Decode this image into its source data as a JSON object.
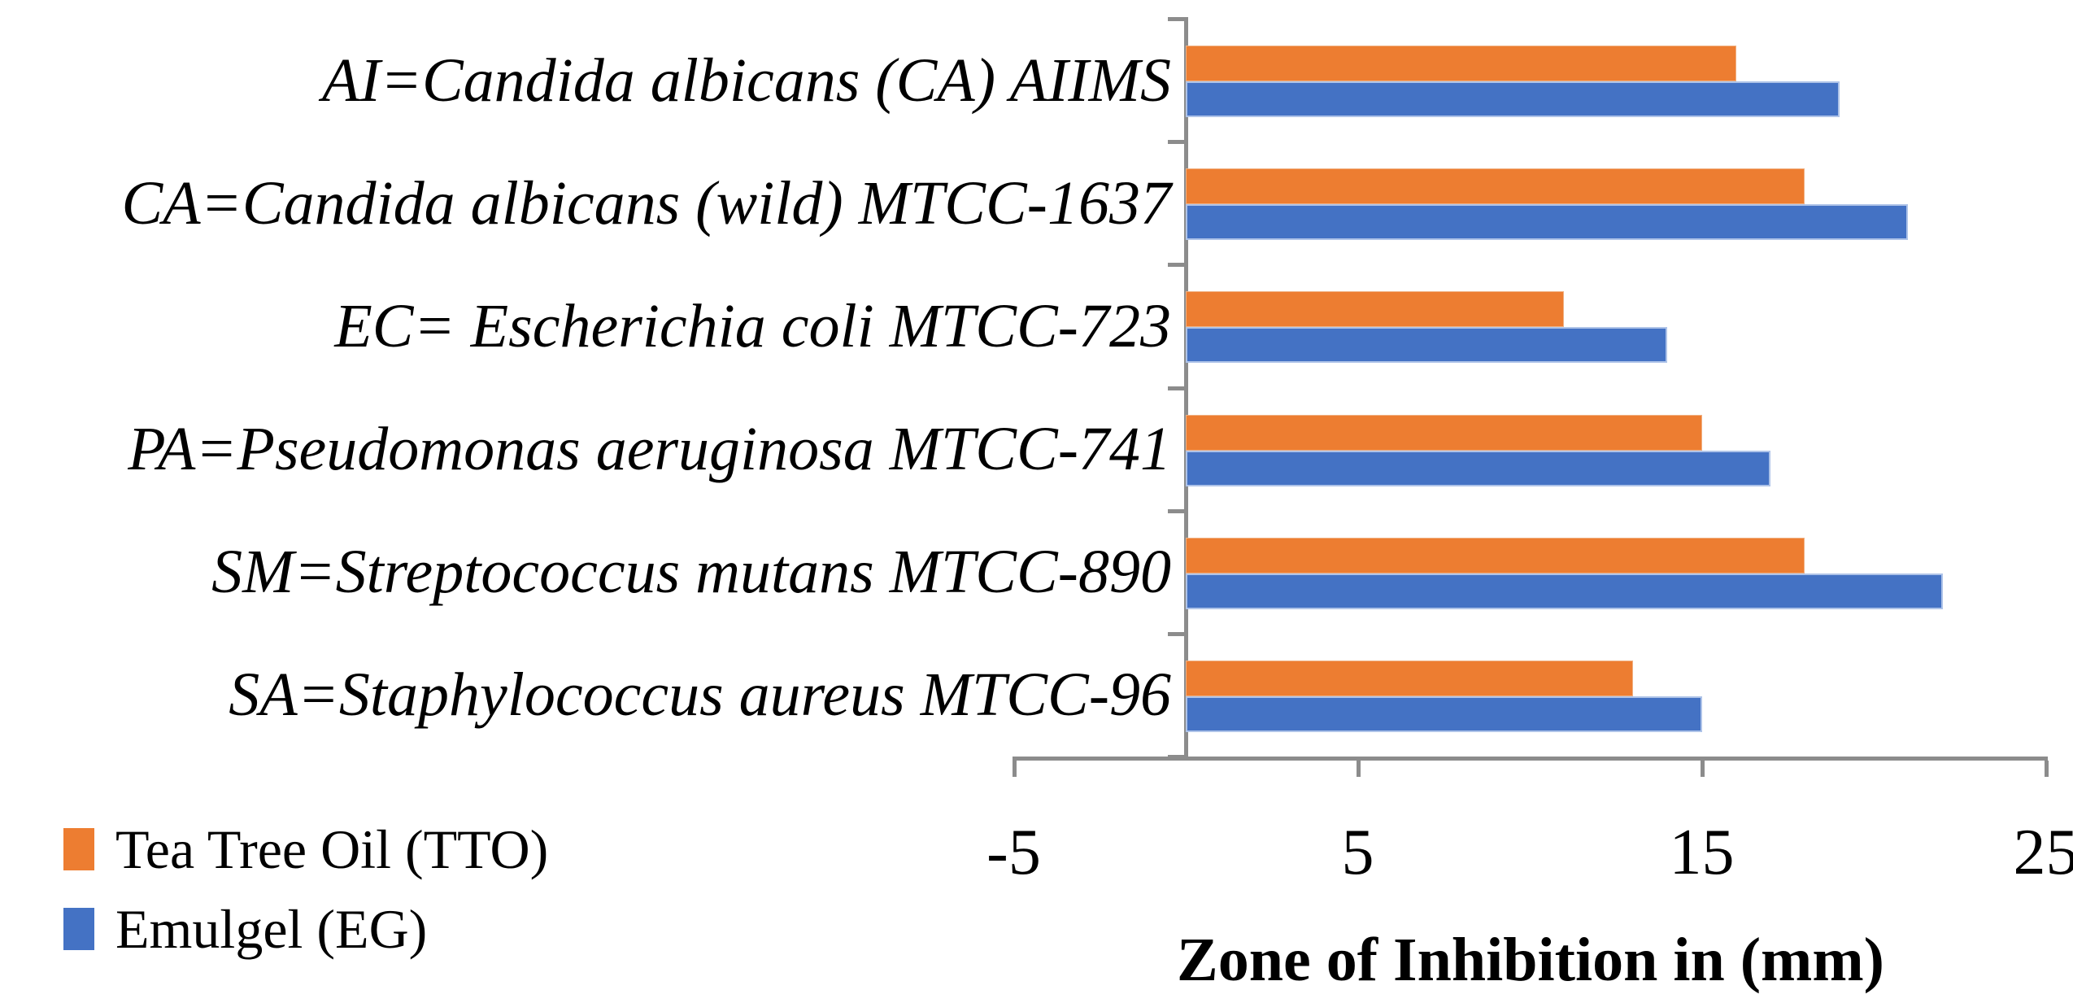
{
  "chart_data": {
    "type": "bar",
    "orientation": "horizontal",
    "title": "",
    "xlabel": "Zone of Inhibition in (mm)",
    "ylabel": "",
    "xlim": [
      -5,
      25
    ],
    "x_ticks": [
      -5,
      5,
      15,
      25
    ],
    "x_tick_labels": [
      "-5",
      "5",
      "15",
      "25"
    ],
    "grid": false,
    "legend_position": "bottom-left",
    "categories": [
      "AI=Candida albicans (CA) AIIMS",
      "CA=Candida albicans (wild) MTCC-1637",
      "EC= Escherichia coli MTCC-723",
      "PA=Pseudomonas aeruginosa MTCC-741",
      "SM=Streptococcus mutans MTCC-890",
      "SA=Staphylococcus aureus MTCC-96"
    ],
    "series": [
      {
        "name": "Tea Tree Oil (TTO)",
        "key": "tto",
        "color": "#ED7D31",
        "values": [
          16,
          18,
          11,
          15,
          18,
          13
        ]
      },
      {
        "name": "Emulgel (EG)",
        "key": "eg",
        "color": "#4472C4",
        "values": [
          19,
          21,
          14,
          17,
          22,
          15
        ]
      }
    ]
  },
  "legend": {
    "items": [
      {
        "label": "Tea Tree Oil (TTO)",
        "color": "#ED7D31"
      },
      {
        "label": "Emulgel (EG)",
        "color": "#4472C4"
      }
    ]
  },
  "axis": {
    "title": "Zone of Inhibition in (mm)",
    "line_color": "#8C8C8C"
  }
}
